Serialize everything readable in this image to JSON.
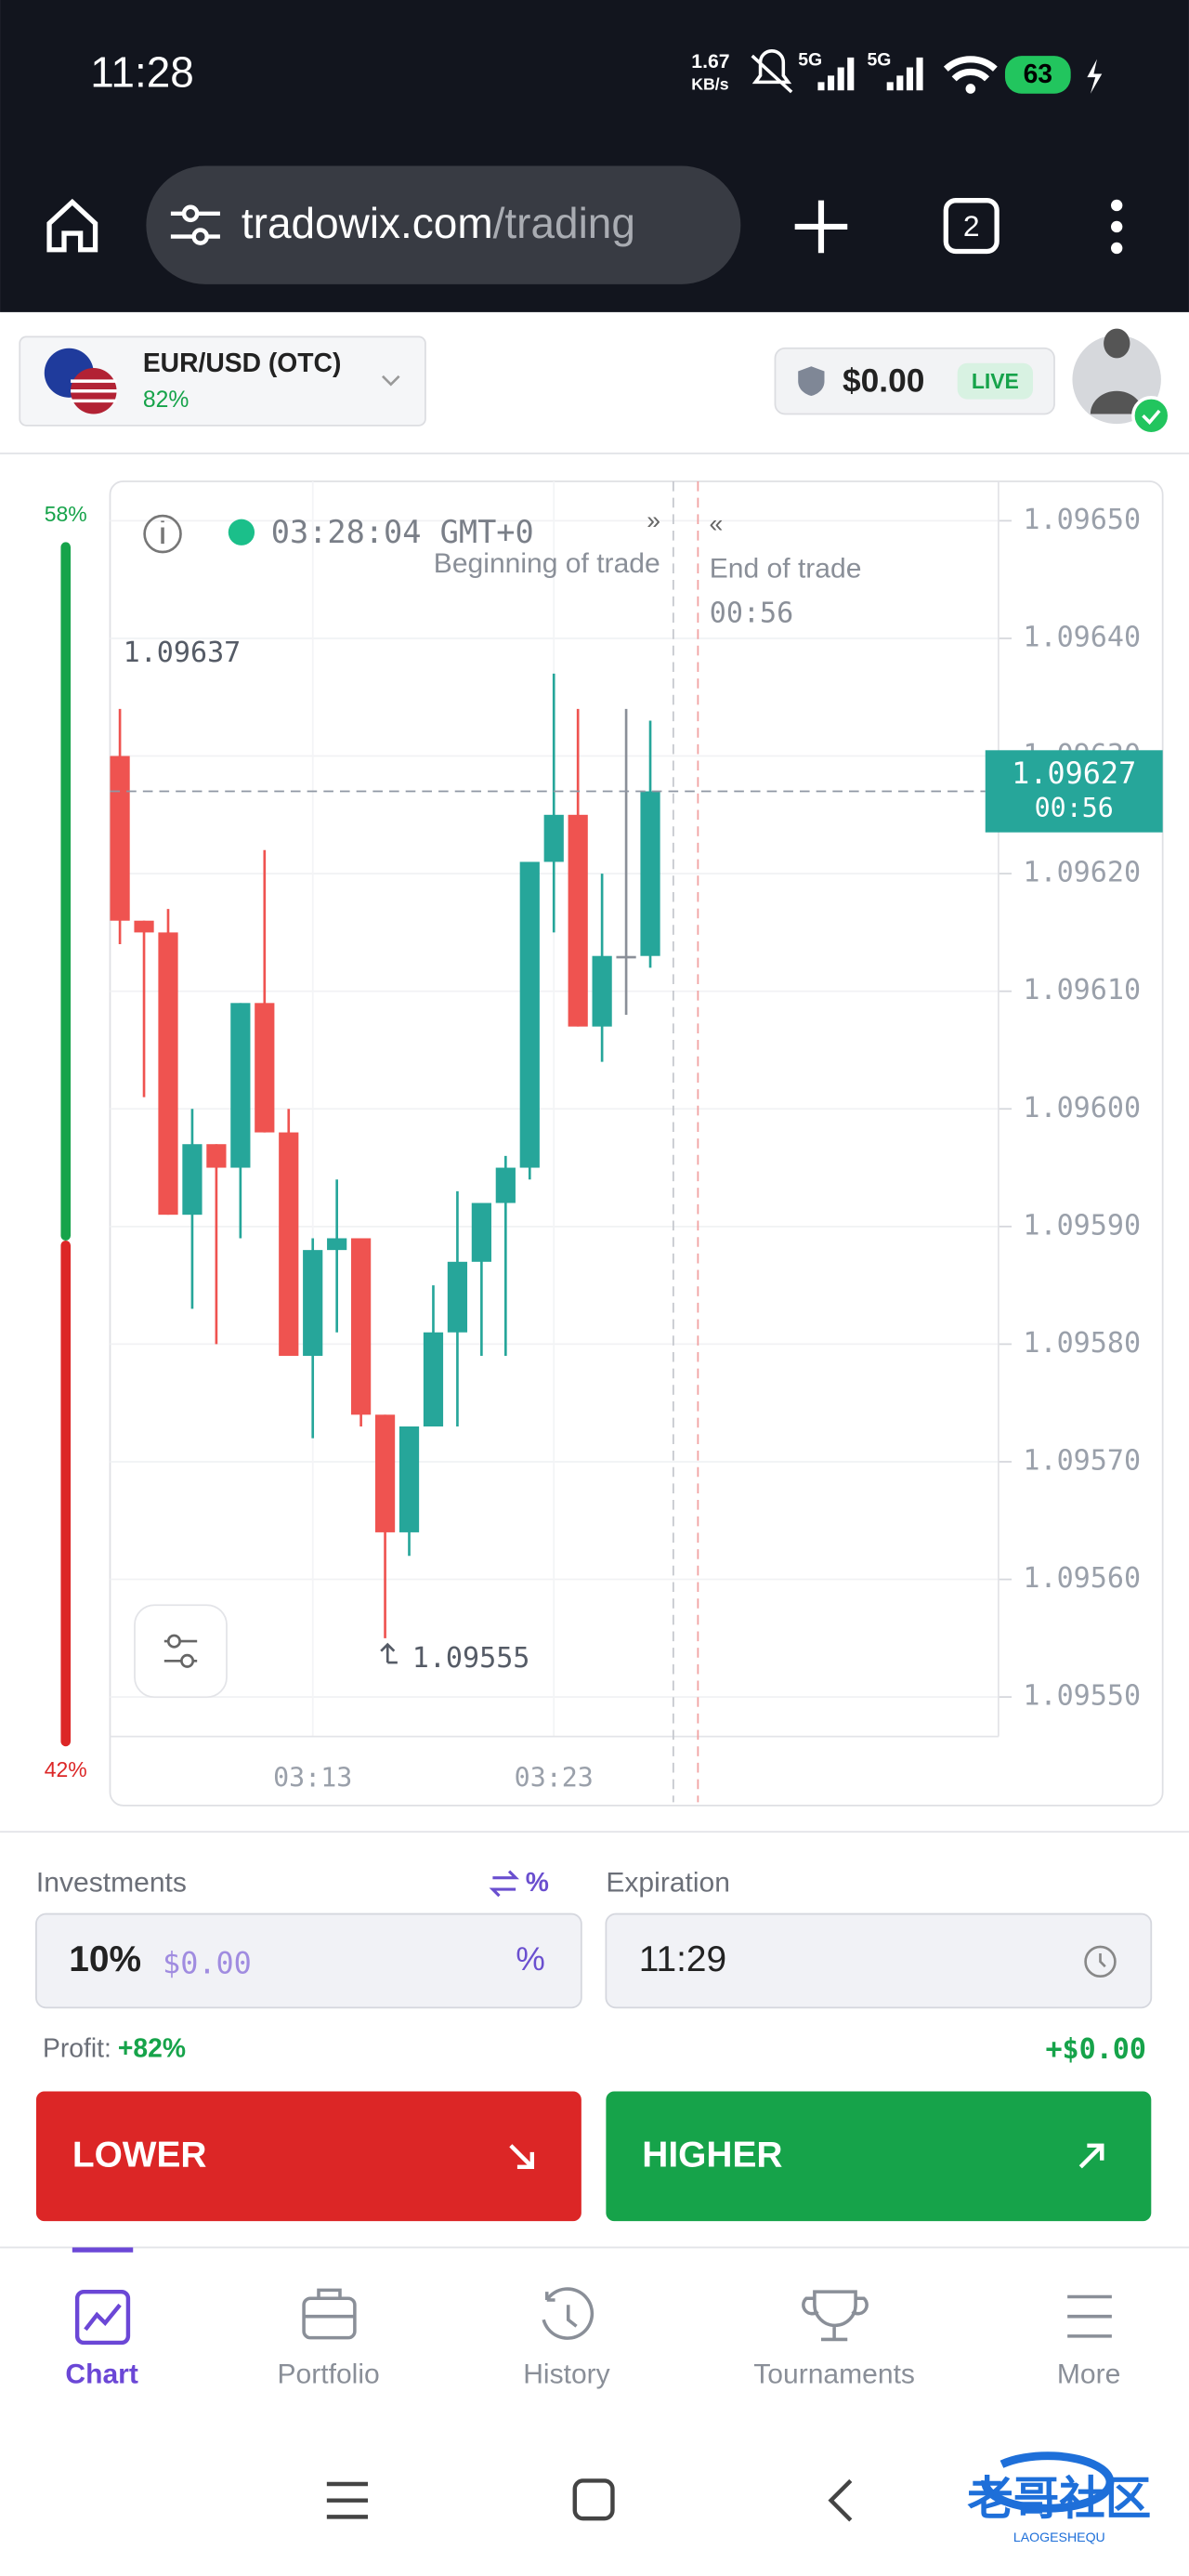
{
  "status_bar": {
    "time": "11:28",
    "speed": "1.67",
    "speed_unit": "KB/s",
    "network_1": "5G",
    "network_2": "5G",
    "battery": "63"
  },
  "browser": {
    "domain": "tradowix.com",
    "path": "/trading",
    "tabs": "2"
  },
  "header": {
    "pair": "EUR/USD (OTC)",
    "payout": "82%",
    "balance": "$0.00",
    "mode": "LIVE"
  },
  "sentiment": {
    "up": {
      "value": 58,
      "label": "58%"
    },
    "down": {
      "value": 42,
      "label": "42%"
    }
  },
  "chart_data": {
    "type": "candlestick",
    "categories": [
      null,
      null,
      null,
      null,
      null,
      null,
      null,
      null,
      "03:13",
      null,
      null,
      null,
      null,
      null,
      null,
      null,
      null,
      null,
      "03:23",
      null,
      null,
      null,
      null
    ],
    "open": [
      1.0963,
      1.09616,
      1.09615,
      1.09591,
      1.09597,
      1.09595,
      1.09609,
      1.09598,
      1.09579,
      1.09588,
      1.09589,
      1.09574,
      1.09564,
      1.09573,
      1.09581,
      1.09587,
      1.09592,
      1.09595,
      1.09621,
      1.09625,
      1.09607,
      1.09613,
      1.09613
    ],
    "high": [
      1.09634,
      1.09616,
      1.09617,
      1.096,
      1.09597,
      1.09609,
      1.09622,
      1.096,
      1.09589,
      1.09594,
      1.09589,
      1.09574,
      1.09573,
      1.09585,
      1.09593,
      1.09592,
      1.09596,
      1.09621,
      1.09637,
      1.09634,
      1.0962,
      1.09634,
      1.09633
    ],
    "low": [
      1.09614,
      1.09601,
      1.09591,
      1.09583,
      1.0958,
      1.09589,
      1.09598,
      1.09579,
      1.09572,
      1.09581,
      1.09573,
      1.09555,
      1.09562,
      1.09573,
      1.09573,
      1.09579,
      1.09579,
      1.09594,
      1.09615,
      1.09607,
      1.09604,
      1.09608,
      1.09612
    ],
    "close": [
      1.09616,
      1.09615,
      1.09591,
      1.09597,
      1.09595,
      1.09609,
      1.09598,
      1.09579,
      1.09588,
      1.09589,
      1.09574,
      1.09564,
      1.09573,
      1.09581,
      1.09587,
      1.09592,
      1.09595,
      1.09621,
      1.09625,
      1.09607,
      1.09613,
      1.09613,
      1.09627
    ],
    "up_color": "#26a69a",
    "down_color": "#ef5350",
    "flat_color": "#8a8f98",
    "ylim": [
      1.09546,
      1.09653
    ],
    "yticks": [
      {
        "value": 1.0955,
        "label": "1.09550"
      },
      {
        "value": 1.0956,
        "label": "1.09560"
      },
      {
        "value": 1.0957,
        "label": "1.09570"
      },
      {
        "value": 1.0958,
        "label": "1.09580"
      },
      {
        "value": 1.0959,
        "label": "1.09590"
      },
      {
        "value": 1.096,
        "label": "1.09600"
      },
      {
        "value": 1.0961,
        "label": "1.09610"
      },
      {
        "value": 1.0962,
        "label": "1.09620"
      },
      {
        "value": 1.0963,
        "label": "1.09630"
      },
      {
        "value": 1.0964,
        "label": "1.09640"
      },
      {
        "value": 1.0965,
        "label": "1.09650"
      }
    ],
    "grid": true,
    "clock": "03:28:04 GMT+0",
    "begin_marker": "»",
    "begin_label": "Beginning of trade",
    "end_marker": "«",
    "end_label": "End of trade",
    "time_left": "00:56",
    "high_label": 1.09637,
    "low_label": 1.09555,
    "current_price": 1.09627
  },
  "trade": {
    "investments_label": "Investments",
    "percent_toggle": "%",
    "amount": "10%",
    "amount_value": "$0.00",
    "amount_unit": "%",
    "expiration_label": "Expiration",
    "expiration": "11:29",
    "profit_label": "Profit:",
    "profit_percent": "+82%",
    "profit_value": "+$0.00",
    "lower": "LOWER",
    "higher": "HIGHER"
  },
  "nav": [
    "Chart",
    "Portfolio",
    "History",
    "Tournaments",
    "More"
  ],
  "watermark": {
    "title": "老哥社区",
    "subtitle": "LAOGESHEQU"
  }
}
